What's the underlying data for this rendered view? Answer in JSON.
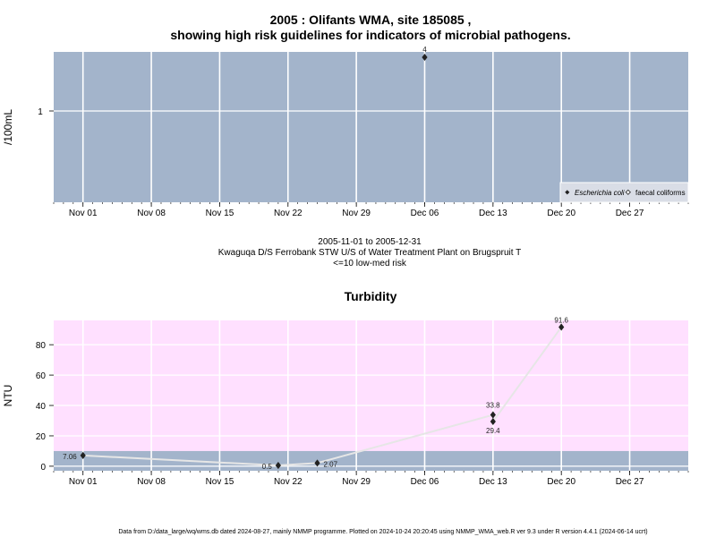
{
  "page": {
    "title_line1": "2005 : Olifants WMA, site 185085 ,",
    "title_line2": "showing high risk guidelines for indicators of microbial pathogens.",
    "caption_line1": "2005-11-01 to 2005-12-31",
    "caption_line2": "Kwaguqa D/S Ferrobank STW U/S of Water Treatment Plant on Brugspruit T",
    "caption_line3": "<=10 low-med risk",
    "footer": "Data from D:/data_large/wq/wms.db dated 2024-08-27, mainly NMMP programme. Plotted on 2024-10-24 20:20:45 using NMMP_WMA_web.R ver 9.3 under R version 4.4.1 (2024-06-14 ucrt)"
  },
  "colors": {
    "panel_blue": "#a3b4cb",
    "panel_pink": "#ffe0ff",
    "grid": "#ffffff",
    "line": "#e6e6e6",
    "point": "#222222"
  },
  "chart_data": [
    {
      "type": "scatter",
      "title": "",
      "ylabel": "/100mL",
      "xlabel": "",
      "x_ticks": [
        "Nov 01",
        "Nov 08",
        "Nov 15",
        "Nov 22",
        "Nov 29",
        "Dec 06",
        "Dec 13",
        "Dec 20",
        "Dec 27"
      ],
      "y_scale": "log",
      "y_ticks": [
        "1"
      ],
      "xlim": [
        "2005-10-29",
        "2006-01-02"
      ],
      "grid": true,
      "legend_position": "bottom-right",
      "series": [
        {
          "name": "Escherichia coli",
          "x": [
            "2005-12-06"
          ],
          "y": [
            4
          ],
          "labels": [
            "4"
          ]
        },
        {
          "name": "faecal coliforms",
          "x": [],
          "y": [],
          "labels": []
        }
      ]
    },
    {
      "type": "line",
      "title": "Turbidity",
      "ylabel": "NTU",
      "xlabel": "",
      "x_ticks": [
        "Nov 01",
        "Nov 08",
        "Nov 15",
        "Nov 22",
        "Nov 29",
        "Dec 06",
        "Dec 13",
        "Dec 20",
        "Dec 27"
      ],
      "y_ticks": [
        "0",
        "20",
        "40",
        "60",
        "80"
      ],
      "ylim": [
        -3,
        96
      ],
      "xlim": [
        "2005-10-29",
        "2006-01-02"
      ],
      "low_risk_band": [
        -3,
        10
      ],
      "grid": true,
      "series": [
        {
          "x": [
            "2005-11-01",
            "2005-11-21",
            "2005-11-25",
            "2005-12-13",
            "2005-12-13",
            "2005-12-20"
          ],
          "y": [
            7.06,
            0.5,
            2.07,
            33.8,
            29.4,
            91.6
          ],
          "labels": [
            "7.06",
            "0.5",
            "2.07",
            "33.8",
            "29.4",
            "91.6"
          ]
        }
      ]
    }
  ]
}
